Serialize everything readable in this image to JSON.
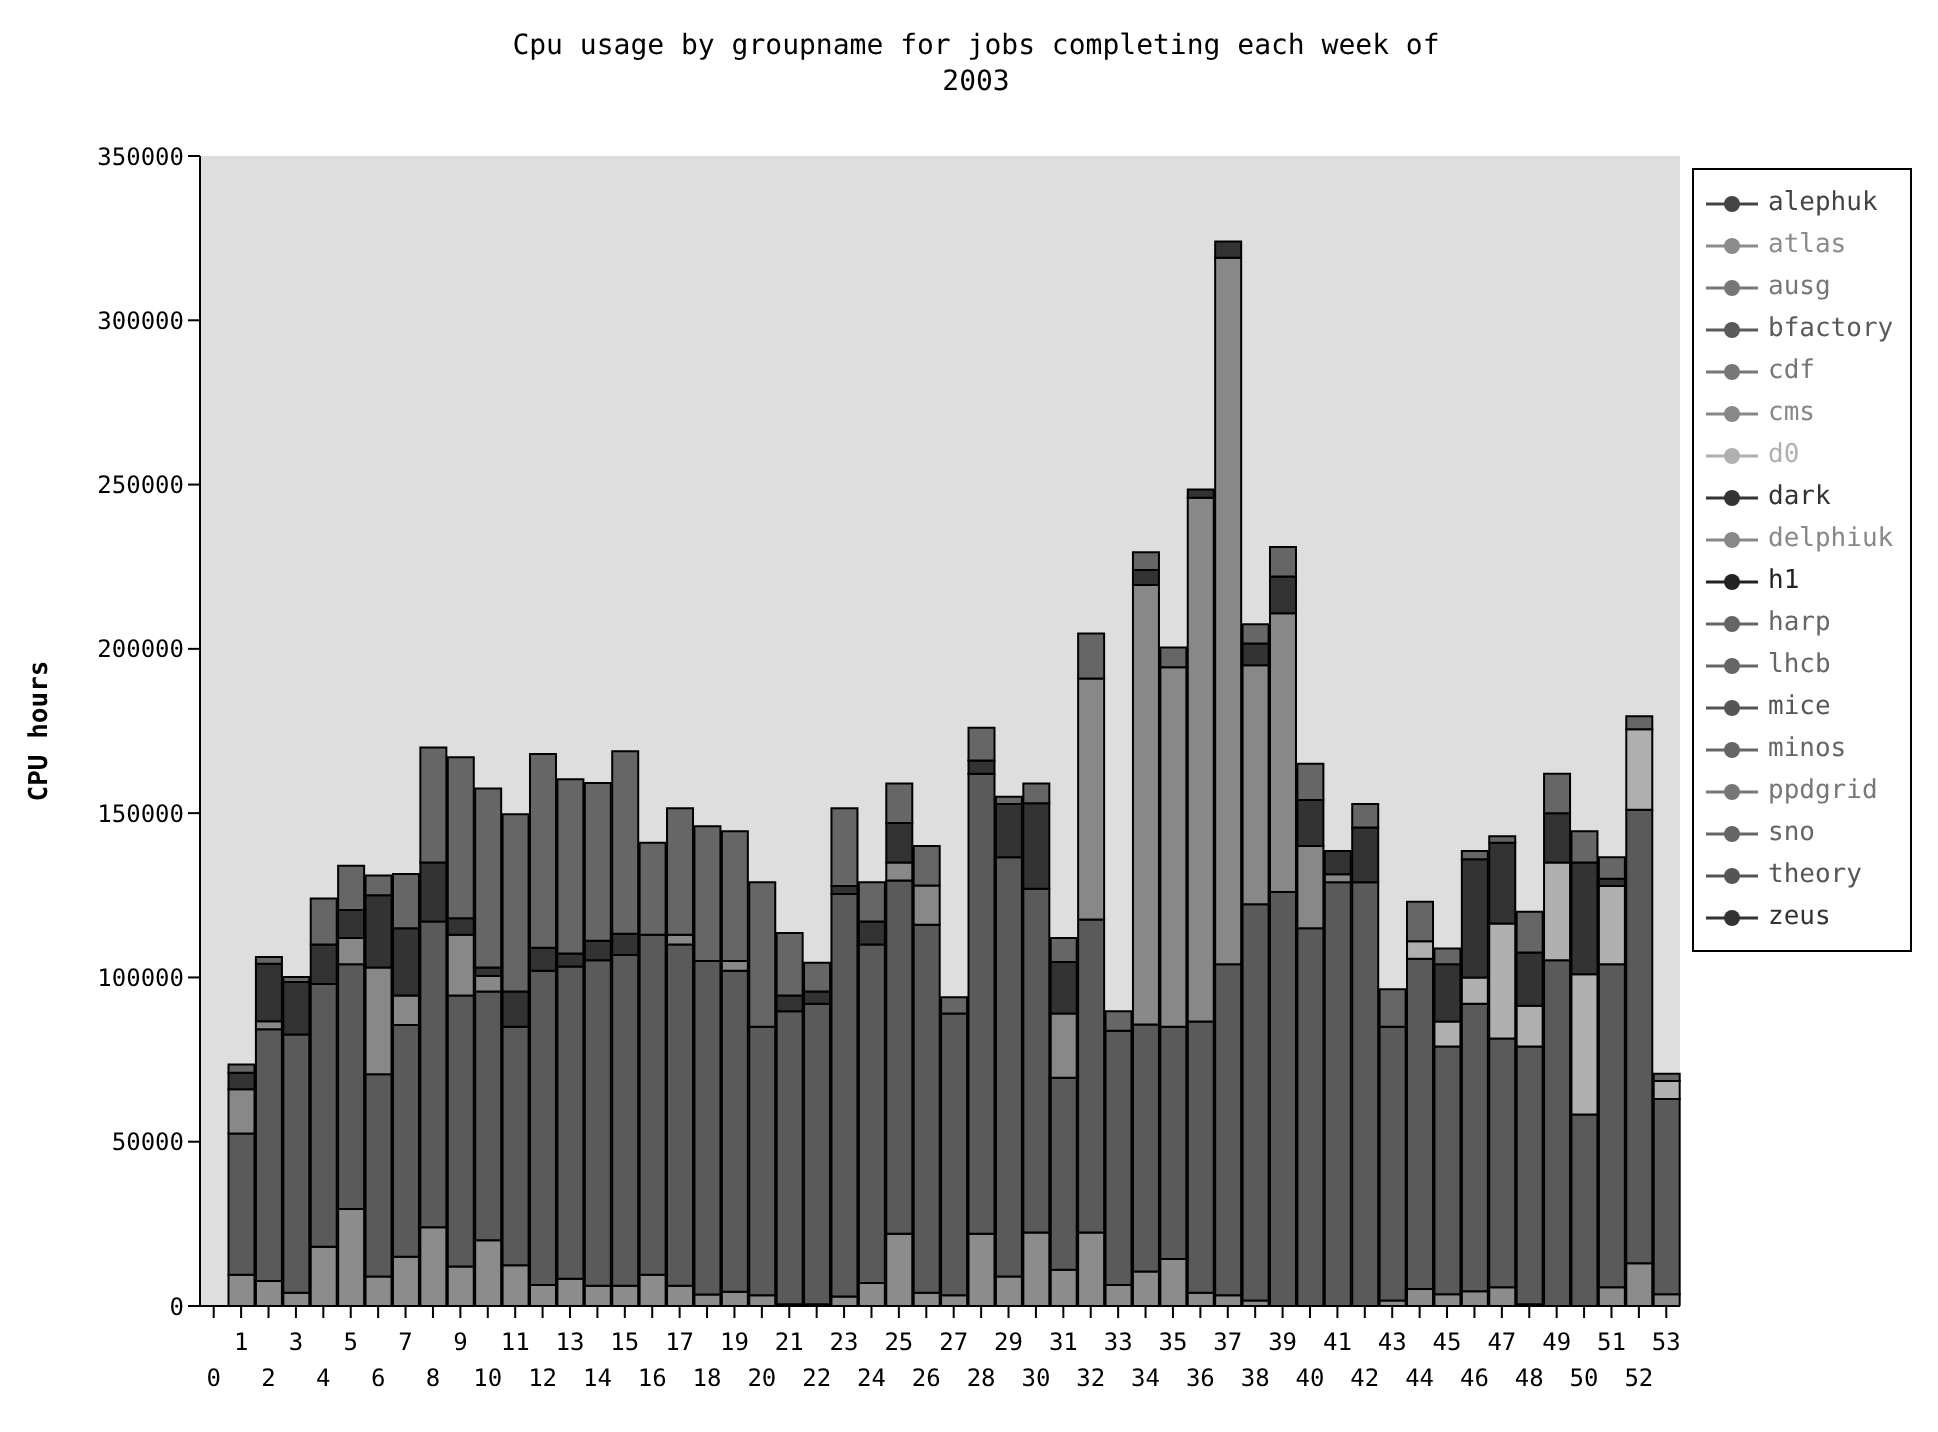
{
  "chart_data": {
    "type": "bar",
    "title": "Cpu usage by groupname for jobs completing each week of 2003",
    "ylabel": "CPU hours",
    "stacked": true,
    "grid": false,
    "legend": "right",
    "marker": "circle",
    "ylim": [
      0,
      350000
    ],
    "yticks": [
      0,
      50000,
      100000,
      150000,
      200000,
      250000,
      300000,
      350000
    ],
    "categories": [
      "0",
      "1",
      "2",
      "3",
      "4",
      "5",
      "6",
      "7",
      "8",
      "9",
      "10",
      "11",
      "12",
      "13",
      "14",
      "15",
      "16",
      "17",
      "18",
      "19",
      "20",
      "21",
      "22",
      "23",
      "24",
      "25",
      "26",
      "27",
      "28",
      "29",
      "30",
      "31",
      "32",
      "33",
      "34",
      "35",
      "36",
      "37",
      "38",
      "39",
      "40",
      "41",
      "42",
      "43",
      "44",
      "45",
      "46",
      "47",
      "48",
      "49",
      "50",
      "51",
      "52",
      "53"
    ],
    "series": [
      {
        "name": "alephuk",
        "color": "#444444",
        "values": [
          null,
          null,
          null,
          null,
          null,
          null,
          null,
          null,
          null,
          null,
          null,
          null,
          null,
          null,
          null,
          null,
          null,
          null,
          null,
          null,
          null,
          null,
          null,
          null,
          null,
          null,
          null,
          null,
          null,
          null,
          null,
          null,
          null,
          null,
          null,
          null,
          null,
          null,
          null,
          null,
          null,
          null,
          null,
          null,
          null,
          null,
          null,
          null,
          null,
          null,
          null,
          null,
          null,
          null
        ]
      },
      {
        "name": "atlas",
        "color": "#8c8c8c",
        "values": [
          null,
          9500,
          7600,
          4000,
          18000,
          29500,
          9000,
          15000,
          24000,
          12000,
          20000,
          12400,
          6400,
          8300,
          6200,
          6200,
          9500,
          6200,
          3500,
          4300,
          3300,
          500,
          500,
          2900,
          7000,
          22000,
          4000,
          3300,
          22000,
          9000,
          22400,
          11000,
          22400,
          6400,
          10500,
          14300,
          4000,
          3300,
          1700,
          null,
          0,
          0,
          0,
          1700,
          5200,
          3600,
          4500,
          5700,
          500,
          0,
          0,
          5700,
          13000,
          3600
        ]
      },
      {
        "name": "ausg",
        "color": "#777777",
        "values": [
          null,
          null,
          null,
          null,
          null,
          null,
          null,
          null,
          null,
          null,
          null,
          null,
          null,
          null,
          null,
          null,
          null,
          null,
          null,
          null,
          null,
          null,
          null,
          null,
          null,
          null,
          null,
          null,
          null,
          null,
          null,
          null,
          null,
          null,
          null,
          null,
          null,
          null,
          null,
          null,
          null,
          null,
          null,
          null,
          null,
          null,
          null,
          null,
          null,
          null,
          null,
          null,
          null,
          null
        ]
      },
      {
        "name": "bfactory",
        "color": "#5a5a5a",
        "values": [
          null,
          43000,
          76600,
          78600,
          80000,
          74500,
          61500,
          70500,
          93000,
          82500,
          75700,
          72600,
          95600,
          95000,
          99000,
          100600,
          103500,
          103800,
          101500,
          97700,
          81700,
          89200,
          91500,
          122500,
          103000,
          107500,
          112000,
          85700,
          140000,
          127600,
          104600,
          58500,
          95200,
          77400,
          75200,
          70700,
          82600,
          100700,
          120600,
          126000,
          115000,
          129000,
          129000,
          83300,
          100500,
          75400,
          87500,
          75700,
          78500,
          105200,
          58300,
          98300,
          138000,
          59400
        ]
      },
      {
        "name": "cdf",
        "color": "#777777",
        "values": [
          null,
          null,
          null,
          null,
          null,
          null,
          null,
          null,
          null,
          null,
          null,
          null,
          null,
          null,
          null,
          null,
          null,
          null,
          null,
          null,
          null,
          null,
          null,
          null,
          null,
          null,
          null,
          null,
          null,
          null,
          null,
          null,
          null,
          null,
          null,
          null,
          null,
          null,
          null,
          null,
          null,
          null,
          null,
          null,
          null,
          null,
          null,
          null,
          null,
          null,
          null,
          null,
          null,
          null
        ]
      },
      {
        "name": "cms",
        "color": "#888888",
        "values": [
          null,
          13500,
          2500,
          0,
          0,
          8000,
          32500,
          9000,
          0,
          18500,
          4700,
          0,
          0,
          0,
          0,
          0,
          0,
          3000,
          0,
          3000,
          0,
          0,
          0,
          0,
          0,
          5500,
          12000,
          0,
          0,
          0,
          0,
          19500,
          73400,
          0,
          133700,
          109400,
          159400,
          215000,
          72700,
          84800,
          25000,
          2400,
          0,
          0,
          0,
          0,
          0,
          0,
          0,
          0,
          0,
          0,
          0,
          0
        ]
      },
      {
        "name": "d0",
        "color": "#b0b0b0",
        "values": [
          null,
          0,
          0,
          0,
          0,
          0,
          0,
          0,
          0,
          0,
          0,
          0,
          0,
          0,
          0,
          0,
          0,
          0,
          0,
          0,
          0,
          0,
          0,
          0,
          0,
          0,
          0,
          0,
          0,
          0,
          0,
          0,
          0,
          0,
          0,
          0,
          0,
          0,
          0,
          0,
          0,
          0,
          0,
          0,
          5300,
          7600,
          8000,
          35000,
          12400,
          29800,
          42700,
          23800,
          24500,
          5500
        ]
      },
      {
        "name": "dark",
        "color": "#333333",
        "values": [
          null,
          5000,
          17500,
          16000,
          12000,
          8500,
          22000,
          20500,
          18000,
          5000,
          2600,
          10700,
          7000,
          4000,
          6000,
          6500,
          0,
          0,
          0,
          0,
          0,
          4800,
          3700,
          2400,
          7000,
          12000,
          0,
          0,
          4000,
          16200,
          26000,
          15700,
          0,
          0,
          4600,
          0,
          2500,
          5000,
          6600,
          11200,
          14000,
          7100,
          16600,
          0,
          0,
          17400,
          36000,
          24600,
          16200,
          15000,
          34000,
          2200,
          0,
          0
        ]
      },
      {
        "name": "delphiuk",
        "color": "#888888",
        "values": [
          null,
          null,
          null,
          null,
          null,
          null,
          null,
          null,
          null,
          null,
          null,
          null,
          null,
          null,
          null,
          null,
          null,
          null,
          null,
          null,
          null,
          null,
          null,
          null,
          null,
          null,
          null,
          null,
          null,
          null,
          null,
          null,
          null,
          null,
          null,
          null,
          null,
          null,
          null,
          null,
          null,
          null,
          null,
          null,
          null,
          null,
          null,
          null,
          null,
          null,
          null,
          null,
          null,
          null
        ]
      },
      {
        "name": "h1",
        "color": "#222222",
        "values": [
          null,
          null,
          null,
          null,
          null,
          null,
          null,
          null,
          null,
          null,
          null,
          null,
          null,
          null,
          null,
          null,
          null,
          null,
          null,
          null,
          null,
          null,
          null,
          null,
          null,
          null,
          null,
          null,
          null,
          null,
          null,
          null,
          null,
          null,
          null,
          null,
          null,
          null,
          null,
          null,
          null,
          null,
          null,
          null,
          null,
          null,
          null,
          null,
          null,
          null,
          null,
          null,
          null,
          null
        ]
      },
      {
        "name": "harp",
        "color": "#666666",
        "values": [
          null,
          null,
          null,
          null,
          null,
          null,
          null,
          null,
          null,
          null,
          null,
          null,
          null,
          null,
          null,
          null,
          null,
          null,
          null,
          null,
          null,
          null,
          null,
          null,
          null,
          null,
          null,
          null,
          null,
          null,
          null,
          null,
          null,
          null,
          null,
          null,
          null,
          null,
          null,
          null,
          null,
          null,
          null,
          null,
          null,
          null,
          null,
          null,
          null,
          null,
          null,
          null,
          null,
          null
        ]
      },
      {
        "name": "lhcb",
        "color": "#666666",
        "values": [
          null,
          2500,
          2000,
          1500,
          14000,
          13500,
          6000,
          16500,
          35000,
          49000,
          54500,
          54000,
          59000,
          53000,
          48000,
          55500,
          28000,
          38500,
          41000,
          39500,
          44000,
          19000,
          8800,
          23700,
          12000,
          12000,
          12000,
          5000,
          10000,
          2200,
          6000,
          7300,
          13700,
          5900,
          5400,
          6000,
          0,
          0,
          5900,
          9000,
          11000,
          0,
          7200,
          11400,
          12000,
          4800,
          2500,
          2000,
          12400,
          12000,
          9500,
          6600,
          4000,
          2200
        ]
      },
      {
        "name": "mice",
        "color": "#555555",
        "values": [
          null,
          null,
          null,
          null,
          null,
          null,
          null,
          null,
          null,
          null,
          null,
          null,
          null,
          null,
          null,
          null,
          null,
          null,
          null,
          null,
          null,
          null,
          null,
          null,
          null,
          null,
          null,
          null,
          null,
          null,
          null,
          null,
          null,
          null,
          null,
          null,
          null,
          null,
          null,
          null,
          null,
          null,
          null,
          null,
          null,
          null,
          null,
          null,
          null,
          null,
          null,
          null,
          null,
          null
        ]
      },
      {
        "name": "minos",
        "color": "#666666",
        "values": [
          null,
          null,
          null,
          null,
          null,
          null,
          null,
          null,
          null,
          null,
          null,
          null,
          null,
          null,
          null,
          null,
          null,
          null,
          null,
          null,
          null,
          null,
          null,
          null,
          null,
          null,
          null,
          null,
          null,
          null,
          null,
          null,
          null,
          null,
          null,
          null,
          null,
          null,
          null,
          null,
          null,
          null,
          null,
          null,
          null,
          null,
          null,
          null,
          null,
          null,
          null,
          null,
          null,
          null
        ]
      },
      {
        "name": "ppdgrid",
        "color": "#777777",
        "values": [
          null,
          null,
          null,
          null,
          null,
          null,
          null,
          null,
          null,
          null,
          null,
          null,
          null,
          null,
          null,
          null,
          null,
          null,
          null,
          null,
          null,
          null,
          null,
          null,
          null,
          null,
          null,
          null,
          null,
          null,
          null,
          null,
          null,
          null,
          null,
          null,
          null,
          null,
          null,
          null,
          null,
          null,
          null,
          null,
          null,
          null,
          null,
          null,
          null,
          null,
          null,
          null,
          null,
          null
        ]
      },
      {
        "name": "sno",
        "color": "#666666",
        "values": [
          null,
          null,
          null,
          null,
          null,
          null,
          null,
          null,
          null,
          null,
          null,
          null,
          null,
          null,
          null,
          null,
          null,
          null,
          null,
          null,
          null,
          null,
          null,
          null,
          null,
          null,
          null,
          null,
          null,
          null,
          null,
          null,
          null,
          null,
          null,
          null,
          null,
          null,
          null,
          null,
          null,
          null,
          null,
          null,
          null,
          null,
          null,
          null,
          null,
          null,
          null,
          null,
          null,
          null
        ]
      },
      {
        "name": "theory",
        "color": "#555555",
        "values": [
          null,
          null,
          null,
          null,
          null,
          null,
          null,
          null,
          null,
          null,
          null,
          null,
          null,
          null,
          null,
          null,
          null,
          null,
          null,
          null,
          null,
          null,
          null,
          null,
          null,
          null,
          null,
          null,
          null,
          null,
          null,
          null,
          null,
          null,
          null,
          null,
          null,
          null,
          null,
          null,
          null,
          null,
          null,
          null,
          null,
          null,
          null,
          null,
          null,
          null,
          null,
          null,
          null,
          null
        ]
      },
      {
        "name": "zeus",
        "color": "#333333",
        "values": [
          null,
          null,
          null,
          null,
          null,
          null,
          null,
          null,
          null,
          null,
          null,
          null,
          null,
          null,
          null,
          null,
          null,
          null,
          null,
          null,
          null,
          null,
          null,
          null,
          null,
          null,
          null,
          null,
          null,
          null,
          null,
          null,
          null,
          null,
          null,
          null,
          null,
          null,
          null,
          null,
          null,
          null,
          null,
          null,
          null,
          null,
          null,
          null,
          null,
          null,
          null,
          null,
          null,
          null
        ]
      }
    ]
  }
}
